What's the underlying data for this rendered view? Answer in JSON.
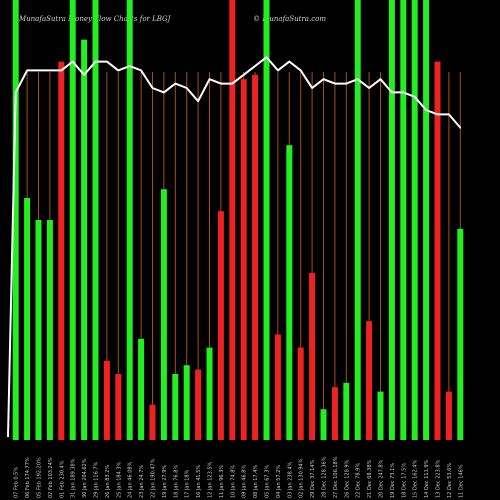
{
  "chart_data": {
    "type": "bar",
    "title": "MunafaSutra Money Flow Charts for LBGJ",
    "credit": "© MunafaSutra.com",
    "ylim": [
      0,
      100
    ],
    "colors": {
      "up": "#22ee22",
      "down": "#ee2222",
      "line": "#ffffff",
      "grid": "#a0521a",
      "background": "#000000"
    },
    "categories": [
      "07 Feb 2024",
      "06 Feb 2024",
      "05 Feb 2024",
      "02 Feb 2024",
      "01 Feb 2024",
      "31 Jan 2024",
      "30 Jan 2024",
      "29 Jan 2024",
      "26 Jan 2024",
      "25 Jan 2024",
      "24 Jan 2024",
      "23 Jan 2024",
      "22 Jan 2024",
      "19 Jan 2024",
      "18 Jan 2024",
      "17 Jan 2024",
      "16 Jan 2024",
      "12 Jan 2024",
      "11 Jan 2024",
      "10 Jan 2024",
      "09 Jan 2024",
      "08 Jan 2024",
      "05 Jan 2024",
      "04 Jan 2024",
      "03 Jan 2024",
      "02 Jan 2024",
      "29 Dec 2023",
      "28 Dec 2023",
      "27 Dec 2023",
      "26 Dec 2023",
      "22 Dec 2023",
      "21 Dec 2023",
      "20 Dec 2023",
      "19 Dec 2023",
      "18 Dec 2023",
      "15 Dec 2023",
      "14 Dec 2023",
      "13 Dec 2023",
      "12 Dec 2023",
      "11 Dec 2023"
    ],
    "tick_labels": [
      "07 Feb 0.5%",
      "06 Feb 174.77%",
      "05 Feb 192.20%",
      "02 Feb 103.24%",
      "01 Feb 230.4%",
      "31 Jan 189.38%",
      "30 Jan 204.62%",
      "29 Jan 116.7%",
      "26 Jan 83.2%",
      "25 Jan 184.3%",
      "24 Jan 46.08%",
      "23 Jan 24.7%",
      "22 Jan 190.47%",
      "19 Jan 27.9%",
      "18 Jan 76.8%",
      "17 Jan 18%",
      "16 Jan 41.5%",
      "12 Jan 123.5%",
      "11 Jan 96.3%",
      "10 Jan 74.8%",
      "09 Jan 46.8%",
      "08 Jan 17.4%",
      "05 Jan 67.3%",
      "04 Jan 57.2%",
      "03 Jan 238.4%",
      "02 Jan 130.94%",
      "29 Dec 37.14%",
      "28 Dec 128.36%",
      "27 Dec 106.18%",
      "26 Dec 128.9%",
      "22 Dec 78.9%",
      "21 Dec 68.38%",
      "20 Dec 247.8%",
      "19 Dec 73.1%",
      "18 Dec 17.5%",
      "15 Dec 162.4%",
      "14 Dec 111.9%",
      "13 Dec 223.8%",
      "12 Dec 53.6%",
      "11 Dec 146%"
    ],
    "series": [
      {
        "values": [
          100,
          55,
          50,
          50,
          86,
          100,
          91,
          100,
          18,
          15,
          100,
          23,
          8,
          57,
          15,
          17,
          16,
          21,
          52,
          100,
          82,
          83,
          100,
          24,
          67,
          21,
          38,
          7,
          12,
          13,
          100,
          27,
          11,
          100,
          100,
          100,
          100,
          86,
          11,
          48
        ],
        "direction": [
          "up",
          "up",
          "up",
          "up",
          "down",
          "up",
          "up",
          "up",
          "down",
          "down",
          "up",
          "up",
          "down",
          "up",
          "up",
          "up",
          "down",
          "up",
          "down",
          "down",
          "down",
          "down",
          "up",
          "down",
          "up",
          "down",
          "down",
          "up",
          "down",
          "up",
          "up",
          "down",
          "up",
          "up",
          "up",
          "up",
          "up",
          "down",
          "down",
          "up"
        ]
      },
      {
        "values": [
          79,
          84,
          84,
          84,
          84,
          86,
          83,
          86,
          86,
          84,
          85,
          84,
          80,
          79,
          81,
          80,
          77,
          82,
          81,
          81,
          83,
          85,
          87,
          84,
          86,
          84,
          80,
          82,
          81,
          81,
          82,
          80,
          82,
          79,
          79,
          78,
          75,
          74,
          74,
          71
        ]
      }
    ]
  }
}
